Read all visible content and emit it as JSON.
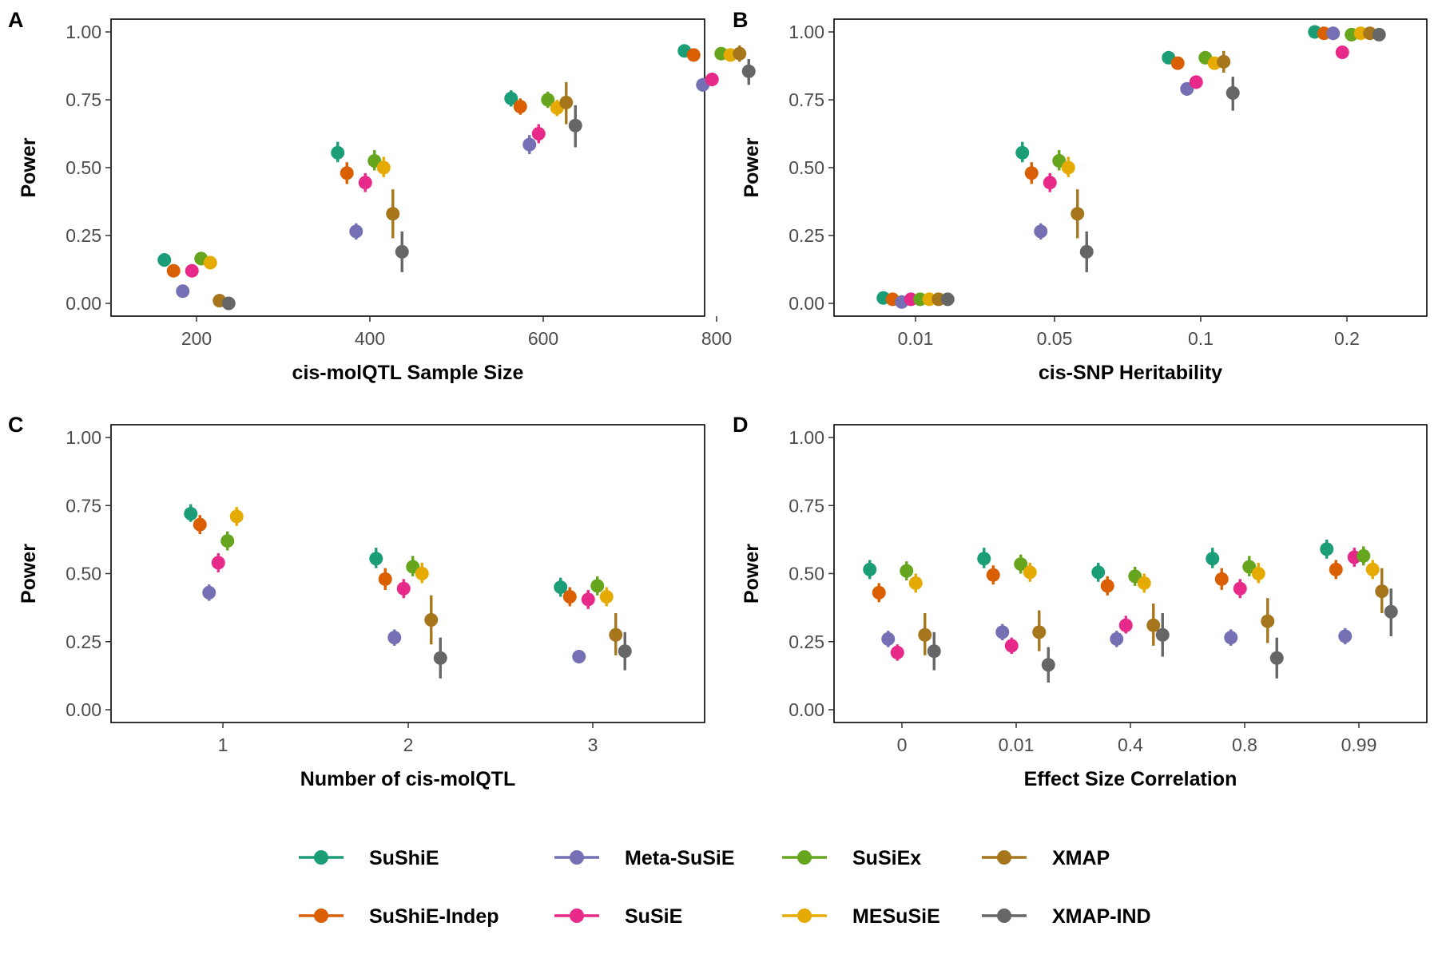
{
  "figure": {
    "legend": {
      "position": "bottom",
      "entries": [
        {
          "name": "SuShiE",
          "color": "#1B9E77"
        },
        {
          "name": "SuShiE-Indep",
          "color": "#D95F02"
        },
        {
          "name": "Meta-SuSiE",
          "color": "#7570B3"
        },
        {
          "name": "SuSiE",
          "color": "#E7298A"
        },
        {
          "name": "SuSiEx",
          "color": "#66A61E"
        },
        {
          "name": "MESuSiE",
          "color": "#E6AB02"
        },
        {
          "name": "XMAP",
          "color": "#A6761D"
        },
        {
          "name": "XMAP-IND",
          "color": "#666666"
        }
      ]
    }
  },
  "chart_data": [
    {
      "panel": "A",
      "type": "scatter",
      "xlabel": "cis-molQTL Sample Size",
      "ylabel": "Power",
      "categories": [
        "200",
        "400",
        "600",
        "800"
      ],
      "ylim": [
        0,
        1
      ],
      "yticks": [
        "0.00",
        "0.25",
        "0.50",
        "0.75",
        "1.00"
      ],
      "grid": false,
      "series": [
        {
          "name": "SuShiE",
          "values": [
            0.16,
            0.555,
            0.755,
            0.93
          ],
          "lower": [
            0.135,
            0.52,
            0.725,
            0.915
          ],
          "upper": [
            0.185,
            0.595,
            0.785,
            0.945
          ]
        },
        {
          "name": "SuShiE-Indep",
          "values": [
            0.12,
            0.48,
            0.725,
            0.915
          ],
          "lower": [
            0.1,
            0.44,
            0.695,
            0.9
          ],
          "upper": [
            0.14,
            0.52,
            0.755,
            0.93
          ]
        },
        {
          "name": "Meta-SuSiE",
          "values": [
            0.045,
            0.265,
            0.585,
            0.805
          ],
          "lower": [
            0.035,
            0.235,
            0.55,
            0.78
          ],
          "upper": [
            0.055,
            0.295,
            0.62,
            0.83
          ]
        },
        {
          "name": "SuSiE",
          "values": [
            0.12,
            0.445,
            0.625,
            0.825
          ],
          "lower": [
            0.1,
            0.41,
            0.59,
            0.8
          ],
          "upper": [
            0.14,
            0.48,
            0.66,
            0.85
          ]
        },
        {
          "name": "SuSiEx",
          "values": [
            0.165,
            0.525,
            0.75,
            0.92
          ],
          "lower": [
            0.14,
            0.49,
            0.72,
            0.905
          ],
          "upper": [
            0.19,
            0.565,
            0.78,
            0.935
          ]
        },
        {
          "name": "MESuSiE",
          "values": [
            0.15,
            0.5,
            0.72,
            0.915
          ],
          "lower": [
            0.125,
            0.465,
            0.69,
            0.9
          ],
          "upper": [
            0.175,
            0.54,
            0.75,
            0.93
          ]
        },
        {
          "name": "XMAP",
          "values": [
            0.01,
            0.33,
            0.74,
            0.92
          ],
          "lower": [
            0.005,
            0.24,
            0.66,
            0.89
          ],
          "upper": [
            0.015,
            0.42,
            0.815,
            0.95
          ]
        },
        {
          "name": "XMAP-IND",
          "values": [
            0.0,
            0.19,
            0.655,
            0.855
          ],
          "lower": [
            0.0,
            0.115,
            0.575,
            0.805
          ],
          "upper": [
            0.0,
            0.265,
            0.73,
            0.9
          ]
        }
      ]
    },
    {
      "panel": "B",
      "type": "scatter",
      "xlabel": "cis-SNP Heritability",
      "ylabel": "Power",
      "categories": [
        "0.01",
        "0.05",
        "0.1",
        "0.2"
      ],
      "ylim": [
        0,
        1
      ],
      "yticks": [
        "0.00",
        "0.25",
        "0.50",
        "0.75",
        "1.00"
      ],
      "grid": false,
      "series": [
        {
          "name": "SuShiE",
          "values": [
            0.02,
            0.555,
            0.905,
            1.0
          ],
          "lower": [
            0.015,
            0.52,
            0.885,
            0.995
          ],
          "upper": [
            0.025,
            0.595,
            0.925,
            1.0
          ]
        },
        {
          "name": "SuShiE-Indep",
          "values": [
            0.015,
            0.48,
            0.885,
            0.995
          ],
          "lower": [
            0.01,
            0.44,
            0.865,
            0.99
          ],
          "upper": [
            0.02,
            0.52,
            0.905,
            1.0
          ]
        },
        {
          "name": "Meta-SuSiE",
          "values": [
            0.005,
            0.265,
            0.79,
            0.995
          ],
          "lower": [
            0.0,
            0.235,
            0.765,
            0.99
          ],
          "upper": [
            0.01,
            0.295,
            0.815,
            1.0
          ]
        },
        {
          "name": "SuSiE",
          "values": [
            0.015,
            0.445,
            0.815,
            0.925
          ],
          "lower": [
            0.01,
            0.41,
            0.79,
            0.91
          ],
          "upper": [
            0.02,
            0.48,
            0.84,
            0.94
          ]
        },
        {
          "name": "SuSiEx",
          "values": [
            0.015,
            0.525,
            0.905,
            0.99
          ],
          "lower": [
            0.01,
            0.49,
            0.885,
            0.985
          ],
          "upper": [
            0.02,
            0.565,
            0.925,
            0.995
          ]
        },
        {
          "name": "MESuSiE",
          "values": [
            0.015,
            0.5,
            0.885,
            0.995
          ],
          "lower": [
            0.01,
            0.465,
            0.865,
            0.99
          ],
          "upper": [
            0.02,
            0.54,
            0.905,
            1.0
          ]
        },
        {
          "name": "XMAP",
          "values": [
            0.015,
            0.33,
            0.89,
            0.995
          ],
          "lower": [
            0.01,
            0.24,
            0.85,
            0.99
          ],
          "upper": [
            0.02,
            0.42,
            0.93,
            1.0
          ]
        },
        {
          "name": "XMAP-IND",
          "values": [
            0.015,
            0.19,
            0.775,
            0.99
          ],
          "lower": [
            0.01,
            0.115,
            0.71,
            0.985
          ],
          "upper": [
            0.02,
            0.265,
            0.835,
            0.995
          ]
        }
      ]
    },
    {
      "panel": "C",
      "type": "scatter",
      "xlabel": "Number of cis-molQTL",
      "ylabel": "Power",
      "categories": [
        "1",
        "2",
        "3"
      ],
      "ylim": [
        0,
        1
      ],
      "yticks": [
        "0.00",
        "0.25",
        "0.50",
        "0.75",
        "1.00"
      ],
      "grid": false,
      "series": [
        {
          "name": "SuShiE",
          "values": [
            0.72,
            0.555,
            0.45
          ],
          "lower": [
            0.69,
            0.52,
            0.415
          ],
          "upper": [
            0.755,
            0.595,
            0.485
          ]
        },
        {
          "name": "SuShiE-Indep",
          "values": [
            0.68,
            0.48,
            0.415
          ],
          "lower": [
            0.645,
            0.44,
            0.38
          ],
          "upper": [
            0.715,
            0.52,
            0.45
          ]
        },
        {
          "name": "Meta-SuSiE",
          "values": [
            0.43,
            0.265,
            0.195
          ],
          "lower": [
            0.4,
            0.235,
            0.17
          ],
          "upper": [
            0.46,
            0.295,
            0.22
          ]
        },
        {
          "name": "SuSiE",
          "values": [
            0.54,
            0.445,
            0.405
          ],
          "lower": [
            0.505,
            0.41,
            0.37
          ],
          "upper": [
            0.575,
            0.48,
            0.44
          ]
        },
        {
          "name": "SuSiEx",
          "values": [
            0.62,
            0.525,
            0.455
          ],
          "lower": [
            0.585,
            0.49,
            0.42
          ],
          "upper": [
            0.655,
            0.565,
            0.49
          ]
        },
        {
          "name": "MESuSiE",
          "values": [
            0.71,
            0.5,
            0.415
          ],
          "lower": [
            0.675,
            0.465,
            0.38
          ],
          "upper": [
            0.745,
            0.54,
            0.45
          ]
        },
        {
          "name": "XMAP",
          "values": [
            null,
            0.33,
            0.275
          ],
          "lower": [
            null,
            0.24,
            0.2
          ],
          "upper": [
            null,
            0.42,
            0.355
          ]
        },
        {
          "name": "XMAP-IND",
          "values": [
            null,
            0.19,
            0.215
          ],
          "lower": [
            null,
            0.115,
            0.145
          ],
          "upper": [
            null,
            0.265,
            0.285
          ]
        }
      ]
    },
    {
      "panel": "D",
      "type": "scatter",
      "xlabel": "Effect Size Correlation",
      "ylabel": "Power",
      "categories": [
        "0",
        "0.01",
        "0.4",
        "0.8",
        "0.99"
      ],
      "ylim": [
        0,
        1
      ],
      "yticks": [
        "0.00",
        "0.25",
        "0.50",
        "0.75",
        "1.00"
      ],
      "grid": false,
      "series": [
        {
          "name": "SuShiE",
          "values": [
            0.515,
            0.555,
            0.505,
            0.555,
            0.59
          ],
          "lower": [
            0.48,
            0.52,
            0.47,
            0.52,
            0.555
          ],
          "upper": [
            0.55,
            0.595,
            0.54,
            0.595,
            0.625
          ]
        },
        {
          "name": "SuShiE-Indep",
          "values": [
            0.43,
            0.495,
            0.455,
            0.48,
            0.515
          ],
          "lower": [
            0.395,
            0.46,
            0.42,
            0.44,
            0.48
          ],
          "upper": [
            0.465,
            0.53,
            0.49,
            0.52,
            0.55
          ]
        },
        {
          "name": "Meta-SuSiE",
          "values": [
            0.26,
            0.285,
            0.26,
            0.265,
            0.27
          ],
          "lower": [
            0.23,
            0.255,
            0.23,
            0.235,
            0.24
          ],
          "upper": [
            0.29,
            0.315,
            0.29,
            0.295,
            0.3
          ]
        },
        {
          "name": "SuSiE",
          "values": [
            0.21,
            0.235,
            0.31,
            0.445,
            0.56
          ],
          "lower": [
            0.18,
            0.205,
            0.28,
            0.41,
            0.525
          ],
          "upper": [
            0.24,
            0.265,
            0.345,
            0.48,
            0.595
          ]
        },
        {
          "name": "SuSiEx",
          "values": [
            0.51,
            0.535,
            0.49,
            0.525,
            0.565
          ],
          "lower": [
            0.475,
            0.5,
            0.455,
            0.49,
            0.53
          ],
          "upper": [
            0.545,
            0.57,
            0.525,
            0.565,
            0.6
          ]
        },
        {
          "name": "MESuSiE",
          "values": [
            0.465,
            0.505,
            0.465,
            0.5,
            0.515
          ],
          "lower": [
            0.43,
            0.47,
            0.43,
            0.465,
            0.48
          ],
          "upper": [
            0.5,
            0.54,
            0.5,
            0.54,
            0.55
          ]
        },
        {
          "name": "XMAP",
          "values": [
            0.275,
            0.285,
            0.31,
            0.325,
            0.435
          ],
          "lower": [
            0.2,
            0.215,
            0.235,
            0.245,
            0.355
          ],
          "upper": [
            0.355,
            0.365,
            0.39,
            0.41,
            0.52
          ]
        },
        {
          "name": "XMAP-IND",
          "values": [
            0.215,
            0.165,
            0.275,
            0.19,
            0.36
          ],
          "lower": [
            0.145,
            0.1,
            0.195,
            0.115,
            0.27
          ],
          "upper": [
            0.285,
            0.23,
            0.355,
            0.265,
            0.445
          ]
        }
      ]
    }
  ]
}
